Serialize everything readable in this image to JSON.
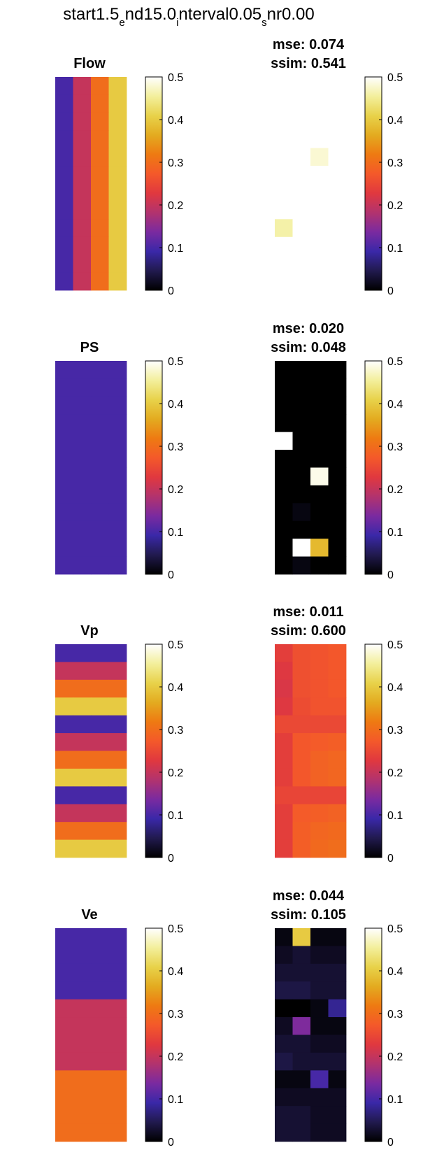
{
  "chart_data": {
    "type": "heatmap",
    "title_parts": [
      "start1.5",
      "e",
      "nd15.0",
      "i",
      "nterval0.05",
      "s",
      "nr0.00"
    ],
    "colormap": [
      "#000000",
      "#211a4e",
      "#3a28a8",
      "#7a2aa0",
      "#b2336e",
      "#e0383f",
      "#f4592a",
      "#ee7a12",
      "#e3ab20",
      "#e8d24a",
      "#f3ef9c",
      "#ffffff"
    ],
    "colorbar": {
      "ticks": [
        "0",
        "0.1",
        "0.2",
        "0.3",
        "0.4",
        "0.5"
      ],
      "clim": [
        0,
        0.5
      ]
    },
    "panels": [
      {
        "name": "Flow",
        "mse_label": "mse: 0.074",
        "ssim_label": "ssim: 0.541",
        "truth": [
          [
            0.1,
            0.2,
            0.3,
            0.4
          ],
          [
            0.1,
            0.2,
            0.3,
            0.4
          ],
          [
            0.1,
            0.2,
            0.3,
            0.4
          ],
          [
            0.1,
            0.2,
            0.3,
            0.4
          ],
          [
            0.1,
            0.2,
            0.3,
            0.4
          ],
          [
            0.1,
            0.2,
            0.3,
            0.4
          ],
          [
            0.1,
            0.2,
            0.3,
            0.4
          ],
          [
            0.1,
            0.2,
            0.3,
            0.4
          ],
          [
            0.1,
            0.2,
            0.3,
            0.4
          ],
          [
            0.1,
            0.2,
            0.3,
            0.4
          ],
          [
            0.1,
            0.2,
            0.3,
            0.4
          ],
          [
            0.1,
            0.2,
            0.3,
            0.4
          ]
        ],
        "estimate": [
          [
            0.5,
            0.5,
            0.5,
            0.5
          ],
          [
            0.5,
            0.5,
            0.5,
            0.5
          ],
          [
            0.5,
            0.5,
            0.5,
            0.5
          ],
          [
            0.5,
            0.5,
            0.5,
            0.5
          ],
          [
            0.5,
            0.5,
            0.48,
            0.5
          ],
          [
            0.5,
            0.5,
            0.5,
            0.5
          ],
          [
            0.5,
            0.5,
            0.5,
            0.5
          ],
          [
            0.5,
            0.5,
            0.5,
            0.5
          ],
          [
            0.46,
            0.5,
            0.5,
            0.5
          ],
          [
            0.5,
            0.5,
            0.5,
            0.5
          ],
          [
            0.5,
            0.5,
            0.5,
            0.5
          ],
          [
            0.5,
            0.5,
            0.5,
            0.5
          ]
        ]
      },
      {
        "name": "PS",
        "mse_label": "mse: 0.020",
        "ssim_label": "ssim: 0.048",
        "truth": [
          [
            0.1,
            0.1,
            0.1,
            0.1
          ],
          [
            0.1,
            0.1,
            0.1,
            0.1
          ],
          [
            0.1,
            0.1,
            0.1,
            0.1
          ],
          [
            0.1,
            0.1,
            0.1,
            0.1
          ],
          [
            0.1,
            0.1,
            0.1,
            0.1
          ],
          [
            0.1,
            0.1,
            0.1,
            0.1
          ],
          [
            0.1,
            0.1,
            0.1,
            0.1
          ],
          [
            0.1,
            0.1,
            0.1,
            0.1
          ],
          [
            0.1,
            0.1,
            0.1,
            0.1
          ],
          [
            0.1,
            0.1,
            0.1,
            0.1
          ],
          [
            0.1,
            0.1,
            0.1,
            0.1
          ],
          [
            0.1,
            0.1,
            0.1,
            0.1
          ]
        ],
        "estimate": [
          [
            0,
            0,
            0,
            0
          ],
          [
            0,
            0,
            0,
            0
          ],
          [
            0,
            0,
            0,
            0
          ],
          [
            0,
            0,
            0,
            0
          ],
          [
            0.5,
            0,
            0,
            0
          ],
          [
            0,
            0,
            0,
            0
          ],
          [
            0,
            0,
            0.49,
            0
          ],
          [
            0,
            0,
            0,
            0
          ],
          [
            0,
            0.01,
            0,
            0
          ],
          [
            0,
            0,
            0,
            0
          ],
          [
            0,
            0.5,
            0.38,
            0
          ],
          [
            0,
            0.01,
            0,
            0
          ]
        ]
      },
      {
        "name": "Vp",
        "mse_label": "mse: 0.011",
        "ssim_label": "ssim: 0.600",
        "truth": [
          [
            0.1,
            0.1,
            0.1,
            0.1
          ],
          [
            0.2,
            0.2,
            0.2,
            0.2
          ],
          [
            0.3,
            0.3,
            0.3,
            0.3
          ],
          [
            0.4,
            0.4,
            0.4,
            0.4
          ],
          [
            0.1,
            0.1,
            0.1,
            0.1
          ],
          [
            0.2,
            0.2,
            0.2,
            0.2
          ],
          [
            0.3,
            0.3,
            0.3,
            0.3
          ],
          [
            0.4,
            0.4,
            0.4,
            0.4
          ],
          [
            0.1,
            0.1,
            0.1,
            0.1
          ],
          [
            0.2,
            0.2,
            0.2,
            0.2
          ],
          [
            0.3,
            0.3,
            0.3,
            0.3
          ],
          [
            0.4,
            0.4,
            0.4,
            0.4
          ]
        ],
        "estimate": [
          [
            0.235,
            0.26,
            0.265,
            0.27
          ],
          [
            0.225,
            0.26,
            0.265,
            0.27
          ],
          [
            0.22,
            0.26,
            0.265,
            0.27
          ],
          [
            0.225,
            0.255,
            0.265,
            0.265
          ],
          [
            0.25,
            0.25,
            0.25,
            0.25
          ],
          [
            0.235,
            0.27,
            0.275,
            0.28
          ],
          [
            0.235,
            0.27,
            0.285,
            0.29
          ],
          [
            0.235,
            0.27,
            0.285,
            0.29
          ],
          [
            0.245,
            0.245,
            0.245,
            0.245
          ],
          [
            0.235,
            0.275,
            0.28,
            0.285
          ],
          [
            0.235,
            0.28,
            0.29,
            0.295
          ],
          [
            0.235,
            0.28,
            0.295,
            0.3
          ]
        ]
      },
      {
        "name": "Ve",
        "mse_label": "mse: 0.044",
        "ssim_label": "ssim: 0.105",
        "truth": [
          [
            0.1,
            0.1,
            0.1,
            0.1
          ],
          [
            0.1,
            0.1,
            0.1,
            0.1
          ],
          [
            0.1,
            0.1,
            0.1,
            0.1
          ],
          [
            0.1,
            0.1,
            0.1,
            0.1
          ],
          [
            0.2,
            0.2,
            0.2,
            0.2
          ],
          [
            0.2,
            0.2,
            0.2,
            0.2
          ],
          [
            0.2,
            0.2,
            0.2,
            0.2
          ],
          [
            0.2,
            0.2,
            0.2,
            0.2
          ],
          [
            0.3,
            0.3,
            0.3,
            0.3
          ],
          [
            0.3,
            0.3,
            0.3,
            0.3
          ],
          [
            0.3,
            0.3,
            0.3,
            0.3
          ],
          [
            0.3,
            0.3,
            0.3,
            0.3
          ]
        ],
        "estimate": [
          [
            0.01,
            0.4,
            0.01,
            0.01
          ],
          [
            0.02,
            0.03,
            0.02,
            0.02
          ],
          [
            0.03,
            0.03,
            0.03,
            0.03
          ],
          [
            0.04,
            0.04,
            0.03,
            0.03
          ],
          [
            0,
            0,
            0.01,
            0.08
          ],
          [
            0.02,
            0.14,
            0.01,
            0.01
          ],
          [
            0.03,
            0.03,
            0.02,
            0.02
          ],
          [
            0.04,
            0.03,
            0.03,
            0.03
          ],
          [
            0.01,
            0.01,
            0.1,
            0.01
          ],
          [
            0.02,
            0.02,
            0.02,
            0.02
          ],
          [
            0.03,
            0.03,
            0.02,
            0.02
          ],
          [
            0.03,
            0.03,
            0.02,
            0.02
          ]
        ]
      }
    ]
  }
}
